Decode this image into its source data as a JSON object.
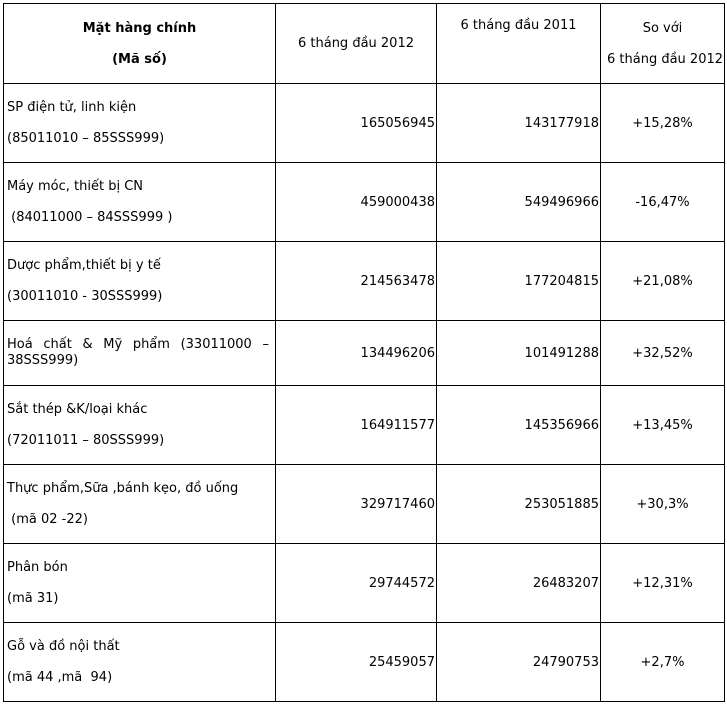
{
  "table": {
    "headers": {
      "col1_line1": "Mặt hàng chính",
      "col1_line2": "(Mã số)",
      "col2": "6 tháng đầu 2012",
      "col3": "6 tháng đầu 2011",
      "col4_line1": "So với",
      "col4_line2": "6 tháng đầu 2012"
    },
    "rows": [
      {
        "name_line1": "SP điện tử, linh kiện",
        "name_line2": "(85011010 – 85SSS999)",
        "val_2012": "165056945",
        "val_2011": "143177918",
        "change": "+15,28%"
      },
      {
        "name_line1": "Máy móc, thiết bị CN",
        "name_line2": " (84011000 – 84SSS999 )",
        "val_2012": "459000438",
        "val_2011": "549496966",
        "change": "-16,47%"
      },
      {
        "name_line1": "Dược phẩm,thiết bị y tế",
        "name_line2": "(30011010 - 30SSS999)",
        "val_2012": "214563478",
        "val_2011": "177204815",
        "change": "+21,08%"
      },
      {
        "name_line1": "Hoá chất & Mỹ phẩm (33011000 –",
        "name_line2": "38SSS999)",
        "val_2012": "134496206",
        "val_2011": "101491288",
        "change": "+32,52%"
      },
      {
        "name_line1": "Sắt thép &K/loại khác",
        "name_line2": "(72011011 – 80SSS999)",
        "val_2012": "164911577",
        "val_2011": "145356966",
        "change": "+13,45%"
      },
      {
        "name_line1": "Thực phẩm,Sữa ,bánh kẹo, đồ uống",
        "name_line2": " (mã 02 -22)",
        "val_2012": "329717460",
        "val_2011": "253051885",
        "change": "+30,3%"
      },
      {
        "name_line1": "Phân bón",
        "name_line2": "(mã 31)",
        "val_2012": "29744572",
        "val_2011": "26483207",
        "change": "+12,31%"
      },
      {
        "name_line1": "Gỗ và đồ nội thất",
        "name_line2": "(mã 44 ,mã  94)",
        "val_2012": "25459057",
        "val_2011": "24790753",
        "change": "+2,7%"
      }
    ]
  }
}
